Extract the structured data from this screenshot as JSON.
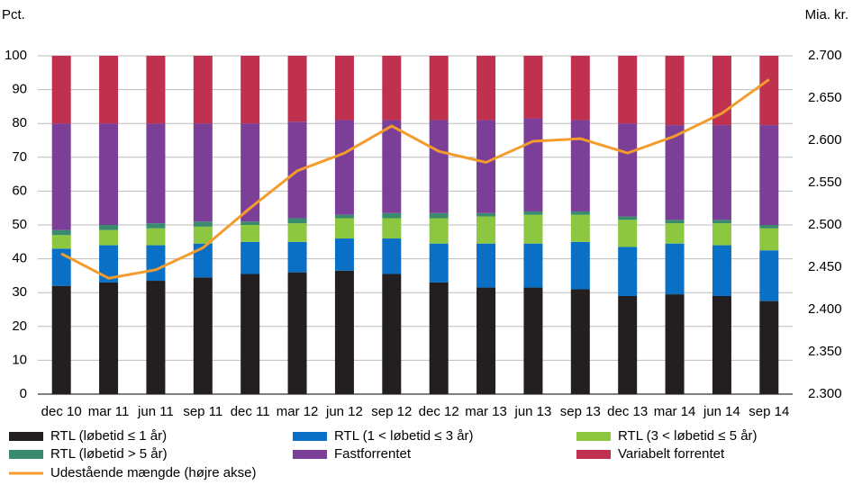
{
  "chart_data": {
    "type": "bar",
    "stacked": true,
    "y_label": "Pct.",
    "y2_label": "Mia. kr.",
    "categories": [
      "dec 10",
      "mar 11",
      "jun 11",
      "sep 11",
      "dec 11",
      "mar 12",
      "jun 12",
      "sep 12",
      "dec 12",
      "mar 13",
      "jun 13",
      "sep 13",
      "dec 13",
      "mar 14",
      "jun 14",
      "sep 14"
    ],
    "ylim": [
      0,
      100
    ],
    "yticks": [
      0,
      10,
      20,
      30,
      40,
      50,
      60,
      70,
      80,
      90,
      100
    ],
    "y2lim": [
      2300,
      2700
    ],
    "y2ticks": [
      {
        "value": 2300,
        "label": "2.300"
      },
      {
        "value": 2350,
        "label": "2.350"
      },
      {
        "value": 2400,
        "label": "2.400"
      },
      {
        "value": 2450,
        "label": "2.450"
      },
      {
        "value": 2500,
        "label": "2.500"
      },
      {
        "value": 2550,
        "label": "2.550"
      },
      {
        "value": 2600,
        "label": "2.600"
      },
      {
        "value": 2650,
        "label": "2.650"
      },
      {
        "value": 2700,
        "label": "2.700"
      }
    ],
    "grid": true,
    "legend": "bottom",
    "series": [
      {
        "name": "RTL (løbetid ≤ 1 år)",
        "type": "bar",
        "color": "#231f20",
        "values": [
          32,
          33,
          33.5,
          34.5,
          35.5,
          36,
          36.5,
          35.5,
          33,
          31.5,
          31.5,
          31,
          29,
          29.5,
          29,
          27.5
        ]
      },
      {
        "name": "RTL (1 < løbetid ≤ 3 år)",
        "type": "bar",
        "color": "#0a70c6",
        "values": [
          11,
          11,
          10.5,
          10,
          9.5,
          9,
          9.5,
          10.5,
          11.5,
          13,
          13,
          14,
          14.5,
          15,
          15,
          15
        ]
      },
      {
        "name": "RTL (3 < løbetid ≤ 5 år)",
        "type": "bar",
        "color": "#8dc63f",
        "values": [
          4,
          4.5,
          5,
          5,
          5,
          5.5,
          6,
          6,
          7.5,
          8,
          8.5,
          8,
          8,
          6,
          6.5,
          6.5
        ]
      },
      {
        "name": "RTL (løbetid > 5 år)",
        "type": "bar",
        "color": "#3a8a6e",
        "values": [
          1.5,
          1.5,
          1.5,
          1.5,
          1,
          1.5,
          1,
          1.5,
          1.5,
          1,
          1,
          1,
          1,
          1,
          1,
          1
        ]
      },
      {
        "name": "Fastforrentet",
        "type": "bar",
        "color": "#7b3f98",
        "values": [
          31.5,
          30,
          29.5,
          29,
          29,
          28.5,
          28,
          27.5,
          27.5,
          27.5,
          27.5,
          27,
          27.5,
          28,
          28,
          29.5
        ]
      },
      {
        "name": "Variabelt forrentet",
        "type": "bar",
        "color": "#c0304f",
        "values": [
          20,
          20,
          20,
          20,
          20,
          19.5,
          19,
          19,
          19,
          19,
          18.5,
          19,
          20,
          20.5,
          20.5,
          20.5
        ]
      },
      {
        "name": "Udestående mængde (højre akse)",
        "type": "line",
        "axis": "y2",
        "color": "#f39c2c",
        "values": [
          2466,
          2437,
          2447,
          2473,
          2520,
          2564,
          2585,
          2617,
          2587,
          2574,
          2599,
          2602,
          2585,
          2605,
          2632,
          2672
        ]
      }
    ]
  }
}
